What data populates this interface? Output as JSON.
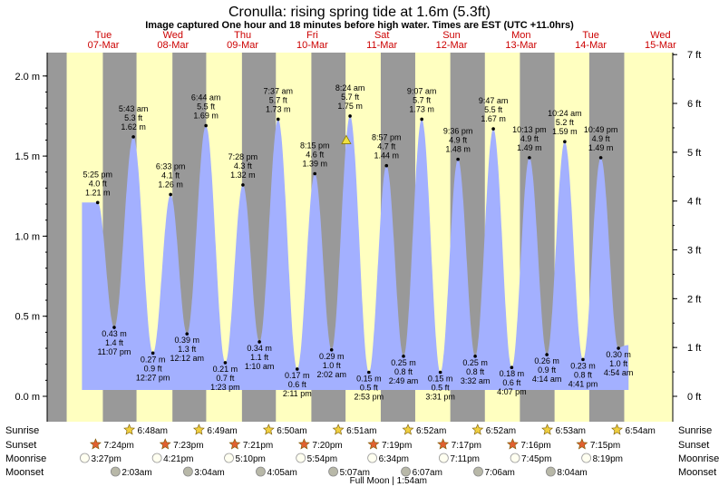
{
  "chart_data": {
    "type": "area",
    "title": "Cronulla: rising  spring tide at 1.6m (5.3ft)",
    "subtitle": "Image captured One hour and 18 minutes before high water. Times are EST (UTC +11.0hrs)",
    "days": [
      {
        "name": "Tue",
        "date": "07-Mar"
      },
      {
        "name": "Wed",
        "date": "08-Mar"
      },
      {
        "name": "Thu",
        "date": "09-Mar"
      },
      {
        "name": "Fri",
        "date": "10-Mar"
      },
      {
        "name": "Sat",
        "date": "11-Mar"
      },
      {
        "name": "Sun",
        "date": "12-Mar"
      },
      {
        "name": "Mon",
        "date": "13-Mar"
      },
      {
        "name": "Tue",
        "date": "14-Mar"
      },
      {
        "name": "Wed",
        "date": "15-Mar"
      }
    ],
    "y_left_ticks": [
      {
        "v": 0.0,
        "label": "0.0 m"
      },
      {
        "v": 0.5,
        "label": "0.5 m"
      },
      {
        "v": 1.0,
        "label": "1.0 m"
      },
      {
        "v": 1.5,
        "label": "1.5 m"
      },
      {
        "v": 2.0,
        "label": "2.0 m"
      }
    ],
    "y_right_ticks": [
      {
        "v": 0,
        "label": "0 ft"
      },
      {
        "v": 1,
        "label": "1 ft"
      },
      {
        "v": 2,
        "label": "2 ft"
      },
      {
        "v": 3,
        "label": "3 ft"
      },
      {
        "v": 4,
        "label": "4 ft"
      },
      {
        "v": 5,
        "label": "5 ft"
      },
      {
        "v": 6,
        "label": "6 ft"
      },
      {
        "v": 7,
        "label": "7 ft"
      }
    ],
    "ylim": [
      -0.15,
      2.15
    ],
    "xlim_days": [
      0,
      8.5
    ],
    "start_level": 1.21,
    "end_level": 0.32,
    "extremes": [
      {
        "t": 0.7257,
        "h": 1.21,
        "time": "5:25 pm",
        "ft": "4.0 ft",
        "m": "1.21 m"
      },
      {
        "t": 0.9632,
        "h": 0.43,
        "time": "11:07 pm",
        "ft": "1.4 ft",
        "m": "0.43 m"
      },
      {
        "t": 1.2382,
        "h": 1.62,
        "time": "5:43 am",
        "ft": "5.3 ft",
        "m": "1.62 m"
      },
      {
        "t": 1.5188,
        "h": 0.27,
        "time": "12:27 pm",
        "ft": "0.9 ft",
        "m": "0.27 m"
      },
      {
        "t": 1.7729,
        "h": 1.26,
        "time": "6:33 pm",
        "ft": "4.1 ft",
        "m": "1.26 m"
      },
      {
        "t": 2.0083,
        "h": 0.39,
        "time": "12:12 am",
        "ft": "1.3 ft",
        "m": "0.39 m"
      },
      {
        "t": 2.2806,
        "h": 1.69,
        "time": "6:44 am",
        "ft": "5.5 ft",
        "m": "1.69 m"
      },
      {
        "t": 2.5576,
        "h": 0.21,
        "time": "1:23 pm",
        "ft": "0.7 ft",
        "m": "0.21 m"
      },
      {
        "t": 2.8111,
        "h": 1.32,
        "time": "7:28 pm",
        "ft": "4.3 ft",
        "m": "1.32 m"
      },
      {
        "t": 3.0486,
        "h": 0.34,
        "time": "1:10 am",
        "ft": "1.1 ft",
        "m": "0.34 m"
      },
      {
        "t": 3.3174,
        "h": 1.73,
        "time": "7:37 am",
        "ft": "5.7 ft",
        "m": "1.73 m"
      },
      {
        "t": 3.591,
        "h": 0.17,
        "time": "2:11 pm",
        "ft": "0.6 ft",
        "m": "0.17 m"
      },
      {
        "t": 3.8438,
        "h": 1.39,
        "time": "8:15 pm",
        "ft": "4.6 ft",
        "m": "1.39 m"
      },
      {
        "t": 4.0847,
        "h": 0.29,
        "time": "2:02 am",
        "ft": "1.0 ft",
        "m": "0.29 m"
      },
      {
        "t": 4.35,
        "h": 1.75,
        "time": "8:24 am",
        "ft": "5.7 ft",
        "m": "1.75 m"
      },
      {
        "t": 4.6201,
        "h": 0.15,
        "time": "2:53 pm",
        "ft": "0.5 ft",
        "m": "0.15 m"
      },
      {
        "t": 4.8729,
        "h": 1.44,
        "time": "8:57 pm",
        "ft": "4.7 ft",
        "m": "1.44 m"
      },
      {
        "t": 5.1174,
        "h": 0.25,
        "time": "2:49 am",
        "ft": "0.8 ft",
        "m": "0.25 m"
      },
      {
        "t": 5.3799,
        "h": 1.73,
        "time": "9:07 am",
        "ft": "5.7 ft",
        "m": "1.73 m"
      },
      {
        "t": 5.6465,
        "h": 0.15,
        "time": "3:31 pm",
        "ft": "0.5 ft",
        "m": "0.15 m"
      },
      {
        "t": 5.9,
        "h": 1.48,
        "time": "9:36 pm",
        "ft": "4.9 ft",
        "m": "1.48 m"
      },
      {
        "t": 6.1472,
        "h": 0.25,
        "time": "3:32 am",
        "ft": "0.8 ft",
        "m": "0.25 m"
      },
      {
        "t": 6.4076,
        "h": 1.67,
        "time": "9:47 am",
        "ft": "5.5 ft",
        "m": "1.67 m"
      },
      {
        "t": 6.6715,
        "h": 0.18,
        "time": "4:07 pm",
        "ft": "0.6 ft",
        "m": "0.18 m"
      },
      {
        "t": 6.9257,
        "h": 1.49,
        "time": "10:13 pm",
        "ft": "4.9 ft",
        "m": "1.49 m"
      },
      {
        "t": 7.1764,
        "h": 0.26,
        "time": "4:14 am",
        "ft": "0.9 ft",
        "m": "0.26 m"
      },
      {
        "t": 7.4333,
        "h": 1.59,
        "time": "10:24 am",
        "ft": "5.2 ft",
        "m": "1.59 m"
      },
      {
        "t": 7.6951,
        "h": 0.23,
        "time": "4:41 pm",
        "ft": "0.8 ft",
        "m": "0.23 m"
      },
      {
        "t": 7.9507,
        "h": 1.49,
        "time": "10:49 pm",
        "ft": "4.9 ft",
        "m": "1.49 m"
      },
      {
        "t": 8.2042,
        "h": 0.3,
        "time": "4:54 am",
        "ft": "1.0 ft",
        "m": "0.30 m"
      }
    ],
    "now_marker": {
      "t": 4.2958,
      "h": 1.6
    },
    "nights": [
      {
        "start": 0.0,
        "end": 0.2806
      },
      {
        "start": 0.8,
        "end": 1.2833
      },
      {
        "start": 1.7993,
        "end": 2.284
      },
      {
        "start": 2.7979,
        "end": 3.2847
      },
      {
        "start": 3.7944,
        "end": 4.2854
      },
      {
        "start": 4.791,
        "end": 5.2861
      },
      {
        "start": 5.7896,
        "end": 6.2861
      },
      {
        "start": 6.7889,
        "end": 7.2868
      },
      {
        "start": 7.7854,
        "end": 8.2875
      }
    ]
  },
  "rows": {
    "sunrise": "Sunrise",
    "sunset": "Sunset",
    "moonrise": "Moonrise",
    "moonset": "Moonset"
  },
  "sunrise": [
    {
      "t": 1.2833,
      "label": "6:48am"
    },
    {
      "t": 2.284,
      "label": "6:49am"
    },
    {
      "t": 3.2847,
      "label": "6:50am"
    },
    {
      "t": 4.2854,
      "label": "6:51am"
    },
    {
      "t": 5.2861,
      "label": "6:52am"
    },
    {
      "t": 6.2861,
      "label": "6:52am"
    },
    {
      "t": 7.2868,
      "label": "6:53am"
    },
    {
      "t": 8.2875,
      "label": "6:54am"
    }
  ],
  "sunset": [
    {
      "t": 0.8,
      "label": "7:24pm"
    },
    {
      "t": 1.7993,
      "label": "7:23pm"
    },
    {
      "t": 2.7979,
      "label": "7:21pm"
    },
    {
      "t": 3.7944,
      "label": "7:20pm"
    },
    {
      "t": 4.791,
      "label": "7:19pm"
    },
    {
      "t": 5.7896,
      "label": "7:17pm"
    },
    {
      "t": 6.7889,
      "label": "7:16pm"
    },
    {
      "t": 7.7854,
      "label": "7:15pm"
    }
  ],
  "moonrise": [
    {
      "t": 0.6438,
      "label": "3:27pm"
    },
    {
      "t": 1.6813,
      "label": "4:21pm"
    },
    {
      "t": 2.7153,
      "label": "5:10pm"
    },
    {
      "t": 3.7458,
      "label": "5:54pm"
    },
    {
      "t": 4.7736,
      "label": "6:34pm"
    },
    {
      "t": 5.7993,
      "label": "7:11pm"
    },
    {
      "t": 6.8236,
      "label": "7:45pm"
    },
    {
      "t": 7.8465,
      "label": "8:19pm"
    }
  ],
  "moonset": [
    {
      "t": 1.0854,
      "label": "2:03am"
    },
    {
      "t": 2.1278,
      "label": "3:04am"
    },
    {
      "t": 3.1701,
      "label": "4:05am"
    },
    {
      "t": 4.2132,
      "label": "5:07am"
    },
    {
      "t": 5.2549,
      "label": "6:07am"
    },
    {
      "t": 6.2958,
      "label": "7:06am"
    },
    {
      "t": 7.3361,
      "label": "8:04am"
    }
  ],
  "moon_phase": {
    "t": 4.9,
    "label": "Full Moon | 1:54am"
  },
  "colors": {
    "day": "#ffffc0",
    "night": "#999999",
    "water": "#a3b0ff",
    "day_text": "#cc0000",
    "star": "#f0d040",
    "sunset_star": "#e06030",
    "moon_fill": "#fffff0",
    "moonset_fill": "#b8b8a8"
  }
}
